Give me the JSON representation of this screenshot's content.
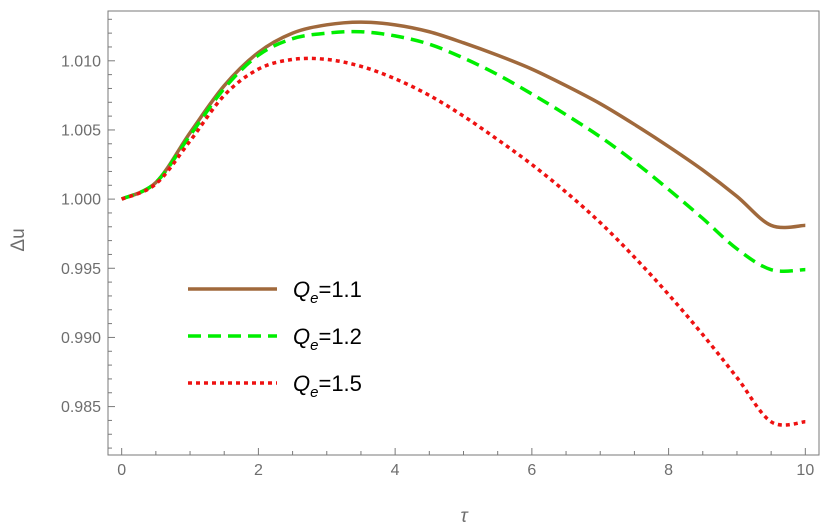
{
  "chart_data": {
    "type": "line",
    "title": "",
    "xlabel": "τ",
    "ylabel": "Δu",
    "xlim": [
      -0.2,
      10.2
    ],
    "ylim": [
      0.9815,
      1.0136
    ],
    "xticks": [
      0,
      2,
      4,
      6,
      8,
      10
    ],
    "xtick_labels": [
      "0",
      "2",
      "4",
      "6",
      "8",
      "10"
    ],
    "yticks": [
      0.985,
      0.99,
      0.995,
      1.0,
      1.005,
      1.01
    ],
    "ytick_labels": [
      "0.985",
      "0.990",
      "0.995",
      "1.000",
      "1.005",
      "1.010"
    ],
    "grid": false,
    "legend_position": "bottom-left",
    "x": [
      0,
      0.5,
      1,
      1.5,
      2,
      2.5,
      3,
      3.5,
      4,
      4.5,
      5,
      5.5,
      6,
      6.5,
      7,
      7.5,
      8,
      8.5,
      9,
      9.5,
      10
    ],
    "series": [
      {
        "name": "Q",
        "subscript": "e",
        "suffix": "=1.1",
        "color": "#a0693c",
        "dash": "solid",
        "values": [
          1.0,
          1.0012,
          1.0048,
          1.0082,
          1.0106,
          1.012,
          1.0126,
          1.0128,
          1.0126,
          1.0121,
          1.0113,
          1.0104,
          1.0094,
          1.0082,
          1.0069,
          1.0054,
          1.0038,
          1.0021,
          1.0002,
          0.9981,
          0.9981
        ]
      },
      {
        "name": "Q",
        "subscript": "e",
        "suffix": "=1.2",
        "color": "#00ee00",
        "dash": "dashed",
        "values": [
          1.0,
          1.0012,
          1.0046,
          1.008,
          1.0104,
          1.0116,
          1.012,
          1.0121,
          1.0118,
          1.0112,
          1.0102,
          1.009,
          1.0076,
          1.0061,
          1.0045,
          1.0027,
          1.0007,
          0.9986,
          0.9964,
          0.9949,
          0.9949
        ]
      },
      {
        "name": "Q",
        "subscript": "e",
        "suffix": "=1.5",
        "color": "#ee1111",
        "dash": "dotted",
        "values": [
          1.0,
          1.0011,
          1.0042,
          1.0075,
          1.0094,
          1.0101,
          1.0101,
          1.0096,
          1.0087,
          1.0075,
          1.006,
          1.0043,
          1.0025,
          1.0005,
          0.9983,
          0.9958,
          0.9931,
          0.9902,
          0.9871,
          0.9839,
          0.9839
        ]
      }
    ]
  }
}
